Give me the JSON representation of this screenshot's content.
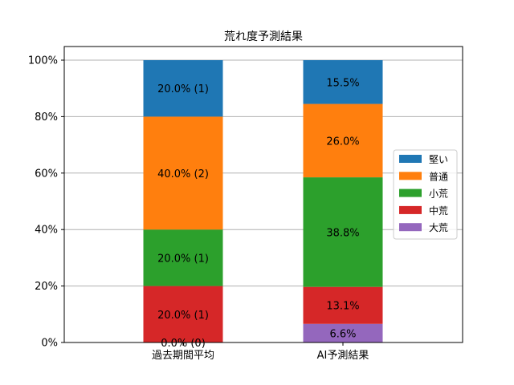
{
  "chart_data": {
    "type": "bar",
    "stacked": true,
    "title": "荒れ度予測結果",
    "xlabel": "",
    "ylabel": "",
    "ylim": [
      0,
      100
    ],
    "y_unit": "%",
    "grid": "horizontal",
    "legend_position": "center-right",
    "categories": [
      "過去期間平均",
      "AI予測結果"
    ],
    "y_ticks": [
      "0%",
      "20%",
      "40%",
      "60%",
      "80%",
      "100%"
    ],
    "series": [
      {
        "name": "大荒",
        "color": "#9467bd",
        "values": [
          0.0,
          6.6
        ],
        "labels": [
          "0.0% (0)",
          "6.6%"
        ]
      },
      {
        "name": "中荒",
        "color": "#d62728",
        "values": [
          20.0,
          13.1
        ],
        "labels": [
          "20.0% (1)",
          "13.1%"
        ]
      },
      {
        "name": "小荒",
        "color": "#2ca02c",
        "values": [
          20.0,
          38.8
        ],
        "labels": [
          "20.0% (1)",
          "38.8%"
        ]
      },
      {
        "name": "普通",
        "color": "#ff7f0e",
        "values": [
          40.0,
          26.0
        ],
        "labels": [
          "40.0% (2)",
          "26.0%"
        ]
      },
      {
        "name": "堅い",
        "color": "#1f77b4",
        "values": [
          20.0,
          15.5
        ],
        "labels": [
          "20.0% (1)",
          "15.5%"
        ]
      }
    ],
    "legend_order": [
      "堅い",
      "普通",
      "小荒",
      "中荒",
      "大荒"
    ]
  }
}
